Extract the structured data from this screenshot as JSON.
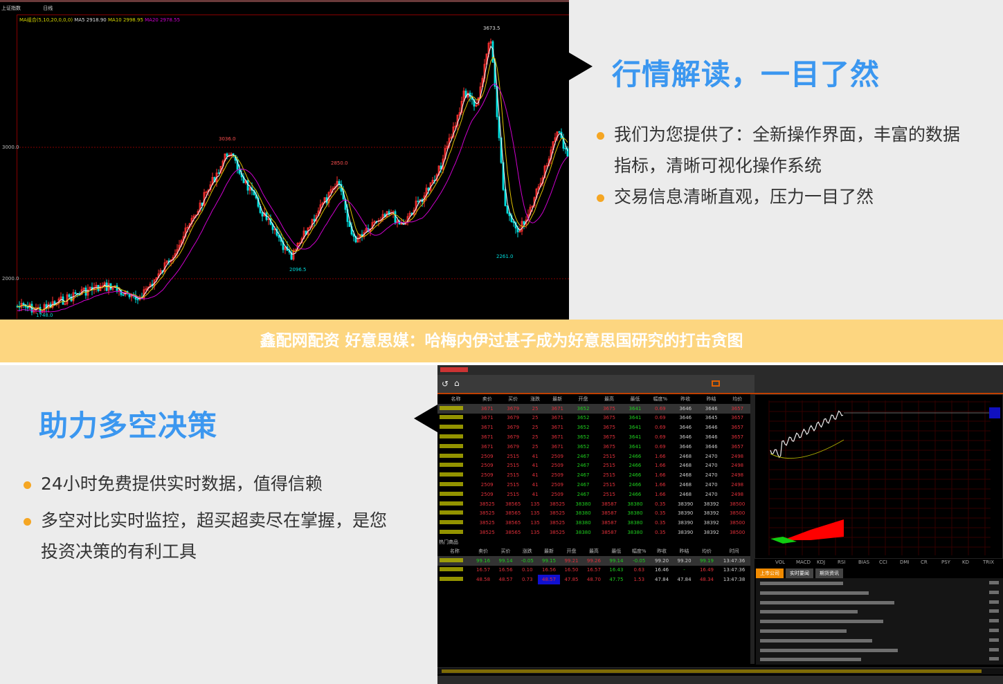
{
  "top_chart": {
    "header": {
      "title": "上证指数",
      "period": "日线",
      "ma_label": "MA组合(5,10,20,0,0,0)",
      "ma5": "MA5 2918.90",
      "ma10": "MA10 2998.95",
      "ma20": "MA20 2978.55"
    },
    "y_ticks": [
      "3000.0",
      "2000.0"
    ],
    "annotations": [
      "3673.5",
      "3036.0",
      "2850.0",
      "2096.5",
      "2261.0",
      "1748.0"
    ],
    "colors": {
      "up": "#ff3030",
      "down": "#00e0e0",
      "ma5": "#ffffff",
      "ma10": "#e0c000",
      "ma20": "#d000d0"
    }
  },
  "section1": {
    "title": "行情解读，一目了然",
    "bullets": [
      "我们为您提供了：全新操作界面，丰富的数据",
      "指标，清晰可视化操作系统",
      "交易信息清晰直观，压力一目了然"
    ]
  },
  "banner": {
    "text": "鑫配网配资 好意思媒：哈梅内伊过甚子成为好意思国研究的打击贪图"
  },
  "section2": {
    "title": "助力多空决策",
    "bullets": [
      "24小时免费提供实时数据，值得信赖",
      "多空对比实时监控，超买超卖尽在掌握，是您",
      "投资决策的有利工具"
    ]
  },
  "app": {
    "columns": [
      "名称",
      "卖价",
      "买价",
      "涨跌",
      "最新",
      "开盘",
      "最高",
      "最低",
      "幅度%",
      "昨收",
      "昨结",
      "均价"
    ],
    "rows": [
      [
        "3671",
        "3679",
        "25",
        "3671",
        "3652",
        "3675",
        "3641",
        "0.69",
        "3646",
        "3646",
        "3657"
      ],
      [
        "3671",
        "3679",
        "25",
        "3671",
        "3652",
        "3675",
        "3641",
        "0.69",
        "3646",
        "3645",
        "3657"
      ],
      [
        "3671",
        "3679",
        "25",
        "3671",
        "3652",
        "3675",
        "3641",
        "0.69",
        "3646",
        "3646",
        "3657"
      ],
      [
        "3671",
        "3679",
        "25",
        "3671",
        "3652",
        "3675",
        "3641",
        "0.69",
        "3646",
        "3646",
        "3657"
      ],
      [
        "3671",
        "3679",
        "25",
        "3671",
        "3652",
        "3675",
        "3641",
        "0.69",
        "3646",
        "3646",
        "3657"
      ],
      [
        "2509",
        "2515",
        "41",
        "2509",
        "2467",
        "2515",
        "2466",
        "1.66",
        "2468",
        "2470",
        "2498"
      ],
      [
        "2509",
        "2515",
        "41",
        "2509",
        "2467",
        "2515",
        "2466",
        "1.66",
        "2468",
        "2470",
        "2498"
      ],
      [
        "2509",
        "2515",
        "41",
        "2509",
        "2467",
        "2515",
        "2466",
        "1.66",
        "2468",
        "2470",
        "2498"
      ],
      [
        "2509",
        "2515",
        "41",
        "2509",
        "2467",
        "2515",
        "2466",
        "1.66",
        "2468",
        "2470",
        "2498"
      ],
      [
        "2509",
        "2515",
        "41",
        "2509",
        "2467",
        "2515",
        "2466",
        "1.66",
        "2468",
        "2470",
        "2498"
      ],
      [
        "38525",
        "38565",
        "135",
        "38525",
        "38380",
        "38587",
        "38380",
        "0.35",
        "38390",
        "38392",
        "38500"
      ],
      [
        "38525",
        "38565",
        "135",
        "38525",
        "38380",
        "38587",
        "38380",
        "0.35",
        "38390",
        "38392",
        "38500"
      ],
      [
        "38525",
        "38565",
        "135",
        "38525",
        "38380",
        "38587",
        "38380",
        "0.35",
        "38390",
        "38392",
        "38500"
      ],
      [
        "38525",
        "38565",
        "135",
        "38525",
        "38380",
        "38587",
        "38380",
        "0.35",
        "38390",
        "38392",
        "38500"
      ]
    ],
    "hot_label": "热门商品",
    "columns2": [
      "名称",
      "卖价",
      "买价",
      "涨跌",
      "最新",
      "开盘",
      "最高",
      "最低",
      "幅度%",
      "昨收",
      "昨结",
      "均价",
      "时间"
    ],
    "rows2": [
      [
        "99.16",
        "99.14",
        "-0.05",
        "99.15",
        "99.21",
        "99.26",
        "99.14",
        "-0.05",
        "99.20",
        "99.20",
        "99.19",
        "13:47:36"
      ],
      [
        "16.57",
        "16.56",
        "0.10",
        "16.56",
        "16.50",
        "16.57",
        "16.43",
        "0.63",
        "16.46",
        "-",
        "16.49",
        "13:47:36"
      ],
      [
        "48.58",
        "48.57",
        "0.73",
        "48.57",
        "47.85",
        "48.70",
        "47.75",
        "1.53",
        "47.84",
        "47.84",
        "48.34",
        "13:47:38"
      ]
    ],
    "indicator_tabs": [
      "VOL",
      "MACD",
      "KDJ",
      "RSI",
      "BIAS",
      "CCI",
      "DMI",
      "CR",
      "PSY",
      "KD",
      "TRIX"
    ],
    "news_tabs": [
      "上市公司",
      "实时要闻",
      "期货资讯"
    ],
    "colors": {
      "accent": "#f08a00",
      "up": "#e0303a",
      "down": "#1fcf1f"
    }
  }
}
